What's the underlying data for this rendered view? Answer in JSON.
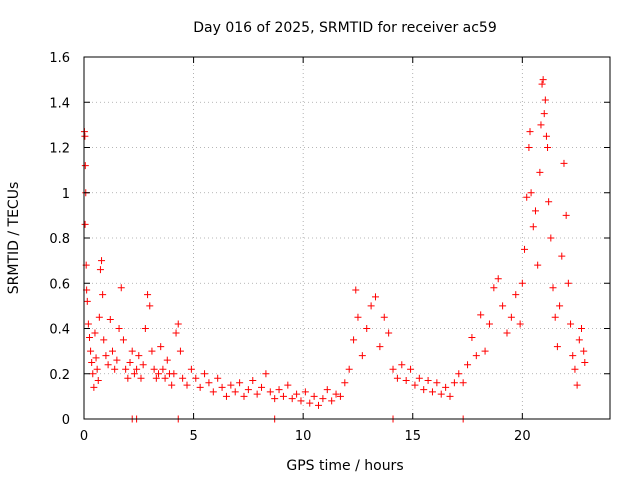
{
  "chart_data": {
    "type": "scatter",
    "title": "Day 016 of 2025, SRMTID for receiver ac59",
    "xlabel": "GPS time / hours",
    "ylabel": "SRMTID / TECUs",
    "xlim": [
      0,
      24
    ],
    "ylim": [
      0,
      1.6
    ],
    "xticks": [
      0,
      5,
      10,
      15,
      20
    ],
    "xtick_labels": [
      "0",
      "5",
      "10",
      "15",
      "20"
    ],
    "yticks": [
      0,
      0.2,
      0.4,
      0.6,
      0.8,
      1,
      1.2,
      1.4,
      1.6
    ],
    "ytick_labels": [
      "0",
      "0.2",
      "0.4",
      "0.6",
      "0.8",
      "1",
      "1.2",
      "1.4",
      "1.6"
    ],
    "grid": true,
    "marker": "+",
    "series": [
      {
        "name": "SRMTID",
        "color": "#ff0000",
        "points": [
          [
            0.02,
            1.27
          ],
          [
            0.04,
            1.25
          ],
          [
            0.06,
            1.12
          ],
          [
            0.08,
            1.0
          ],
          [
            0.05,
            0.86
          ],
          [
            0.1,
            0.68
          ],
          [
            0.12,
            0.57
          ],
          [
            0.15,
            0.52
          ],
          [
            0.2,
            0.42
          ],
          [
            0.25,
            0.36
          ],
          [
            0.3,
            0.3
          ],
          [
            0.35,
            0.25
          ],
          [
            0.4,
            0.2
          ],
          [
            0.45,
            0.14
          ],
          [
            0.5,
            0.38
          ],
          [
            0.55,
            0.27
          ],
          [
            0.6,
            0.22
          ],
          [
            0.65,
            0.17
          ],
          [
            0.7,
            0.45
          ],
          [
            0.75,
            0.66
          ],
          [
            0.8,
            0.7
          ],
          [
            0.85,
            0.55
          ],
          [
            0.9,
            0.35
          ],
          [
            1.0,
            0.28
          ],
          [
            1.1,
            0.24
          ],
          [
            1.2,
            0.44
          ],
          [
            1.3,
            0.3
          ],
          [
            1.4,
            0.22
          ],
          [
            1.5,
            0.26
          ],
          [
            1.6,
            0.4
          ],
          [
            1.7,
            0.58
          ],
          [
            1.8,
            0.35
          ],
          [
            1.9,
            0.22
          ],
          [
            2.0,
            0.18
          ],
          [
            2.1,
            0.25
          ],
          [
            2.2,
            0.3
          ],
          [
            2.3,
            0.2
          ],
          [
            2.4,
            0.22
          ],
          [
            2.5,
            0.28
          ],
          [
            2.6,
            0.18
          ],
          [
            2.7,
            0.24
          ],
          [
            2.8,
            0.4
          ],
          [
            2.9,
            0.55
          ],
          [
            3.0,
            0.5
          ],
          [
            3.1,
            0.3
          ],
          [
            3.2,
            0.22
          ],
          [
            3.3,
            0.18
          ],
          [
            3.4,
            0.2
          ],
          [
            3.5,
            0.32
          ],
          [
            3.6,
            0.22
          ],
          [
            3.7,
            0.18
          ],
          [
            3.8,
            0.26
          ],
          [
            3.9,
            0.2
          ],
          [
            4.0,
            0.15
          ],
          [
            4.1,
            0.2
          ],
          [
            4.2,
            0.38
          ],
          [
            4.3,
            0.42
          ],
          [
            4.4,
            0.3
          ],
          [
            4.5,
            0.18
          ],
          [
            4.7,
            0.15
          ],
          [
            4.9,
            0.22
          ],
          [
            5.1,
            0.18
          ],
          [
            5.3,
            0.14
          ],
          [
            5.5,
            0.2
          ],
          [
            5.7,
            0.16
          ],
          [
            5.9,
            0.12
          ],
          [
            6.1,
            0.18
          ],
          [
            6.3,
            0.14
          ],
          [
            6.5,
            0.1
          ],
          [
            6.7,
            0.15
          ],
          [
            6.9,
            0.12
          ],
          [
            7.1,
            0.16
          ],
          [
            7.3,
            0.1
          ],
          [
            7.5,
            0.13
          ],
          [
            7.7,
            0.17
          ],
          [
            7.9,
            0.11
          ],
          [
            8.1,
            0.14
          ],
          [
            8.3,
            0.2
          ],
          [
            8.5,
            0.12
          ],
          [
            8.7,
            0.09
          ],
          [
            8.9,
            0.13
          ],
          [
            9.1,
            0.1
          ],
          [
            9.3,
            0.15
          ],
          [
            9.5,
            0.09
          ],
          [
            9.7,
            0.11
          ],
          [
            9.9,
            0.08
          ],
          [
            10.1,
            0.12
          ],
          [
            10.3,
            0.07
          ],
          [
            10.5,
            0.1
          ],
          [
            10.7,
            0.06
          ],
          [
            10.9,
            0.09
          ],
          [
            11.1,
            0.13
          ],
          [
            11.3,
            0.08
          ],
          [
            11.5,
            0.11
          ],
          [
            11.7,
            0.1
          ],
          [
            11.9,
            0.16
          ],
          [
            12.1,
            0.22
          ],
          [
            12.3,
            0.35
          ],
          [
            12.4,
            0.57
          ],
          [
            12.5,
            0.45
          ],
          [
            12.7,
            0.28
          ],
          [
            12.9,
            0.4
          ],
          [
            13.1,
            0.5
          ],
          [
            13.3,
            0.54
          ],
          [
            13.5,
            0.32
          ],
          [
            13.7,
            0.45
          ],
          [
            13.9,
            0.38
          ],
          [
            14.1,
            0.22
          ],
          [
            14.3,
            0.18
          ],
          [
            14.5,
            0.24
          ],
          [
            14.7,
            0.17
          ],
          [
            14.9,
            0.22
          ],
          [
            15.1,
            0.15
          ],
          [
            15.3,
            0.18
          ],
          [
            15.5,
            0.13
          ],
          [
            15.7,
            0.17
          ],
          [
            15.9,
            0.12
          ],
          [
            16.1,
            0.16
          ],
          [
            16.3,
            0.11
          ],
          [
            16.5,
            0.14
          ],
          [
            16.7,
            0.1
          ],
          [
            16.9,
            0.16
          ],
          [
            17.1,
            0.2
          ],
          [
            17.3,
            0.16
          ],
          [
            17.5,
            0.24
          ],
          [
            17.7,
            0.36
          ],
          [
            17.9,
            0.28
          ],
          [
            18.1,
            0.46
          ],
          [
            18.3,
            0.3
          ],
          [
            18.5,
            0.42
          ],
          [
            18.7,
            0.58
          ],
          [
            18.9,
            0.62
          ],
          [
            19.1,
            0.5
          ],
          [
            19.3,
            0.38
          ],
          [
            19.5,
            0.45
          ],
          [
            19.7,
            0.55
          ],
          [
            19.9,
            0.42
          ],
          [
            20.0,
            0.6
          ],
          [
            20.1,
            0.75
          ],
          [
            20.2,
            0.98
          ],
          [
            20.3,
            1.2
          ],
          [
            20.35,
            1.27
          ],
          [
            20.4,
            1.0
          ],
          [
            20.5,
            0.85
          ],
          [
            20.6,
            0.92
          ],
          [
            20.7,
            0.68
          ],
          [
            20.8,
            1.09
          ],
          [
            20.85,
            1.3
          ],
          [
            20.9,
            1.48
          ],
          [
            20.95,
            1.5
          ],
          [
            21.0,
            1.35
          ],
          [
            21.05,
            1.41
          ],
          [
            21.1,
            1.25
          ],
          [
            21.15,
            1.2
          ],
          [
            21.2,
            0.96
          ],
          [
            21.3,
            0.8
          ],
          [
            21.4,
            0.58
          ],
          [
            21.5,
            0.45
          ],
          [
            21.6,
            0.32
          ],
          [
            21.7,
            0.5
          ],
          [
            21.8,
            0.72
          ],
          [
            21.9,
            1.13
          ],
          [
            22.0,
            0.9
          ],
          [
            22.1,
            0.6
          ],
          [
            22.2,
            0.42
          ],
          [
            22.3,
            0.28
          ],
          [
            22.4,
            0.22
          ],
          [
            22.5,
            0.15
          ],
          [
            22.6,
            0.35
          ],
          [
            22.7,
            0.4
          ],
          [
            22.8,
            0.3
          ],
          [
            22.85,
            0.25
          ],
          [
            2.2,
            0.0
          ],
          [
            2.4,
            0.0
          ],
          [
            4.3,
            0.0
          ],
          [
            8.7,
            0.0
          ],
          [
            14.1,
            0.0
          ],
          [
            17.3,
            0.0
          ]
        ]
      }
    ]
  }
}
